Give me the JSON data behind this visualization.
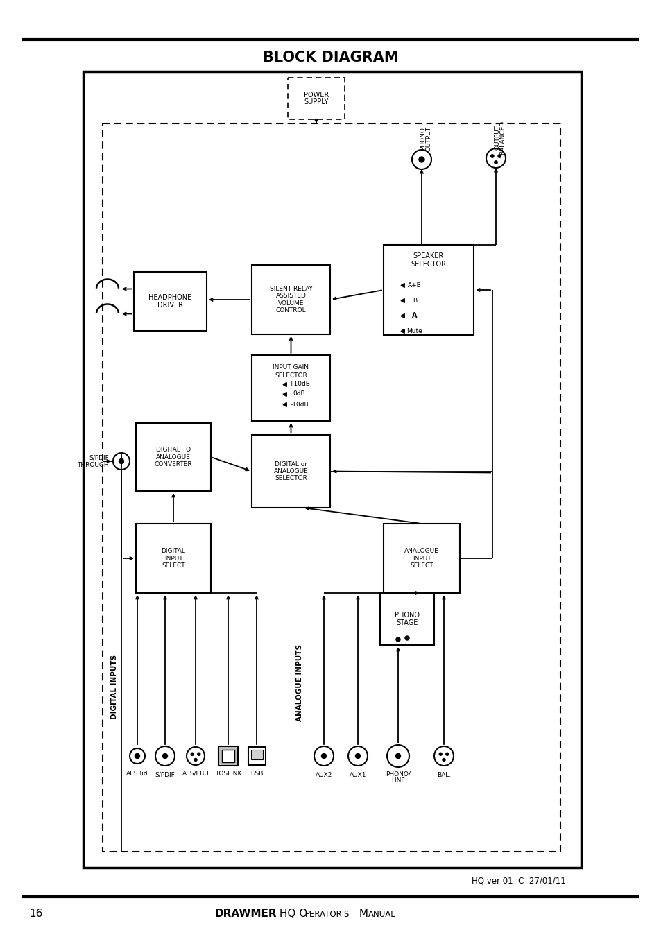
{
  "title": "BLOCK DIAGRAM",
  "page_number": "16",
  "version_text": "HQ ver 01  C  27/01/11",
  "bg_color": "#ffffff"
}
